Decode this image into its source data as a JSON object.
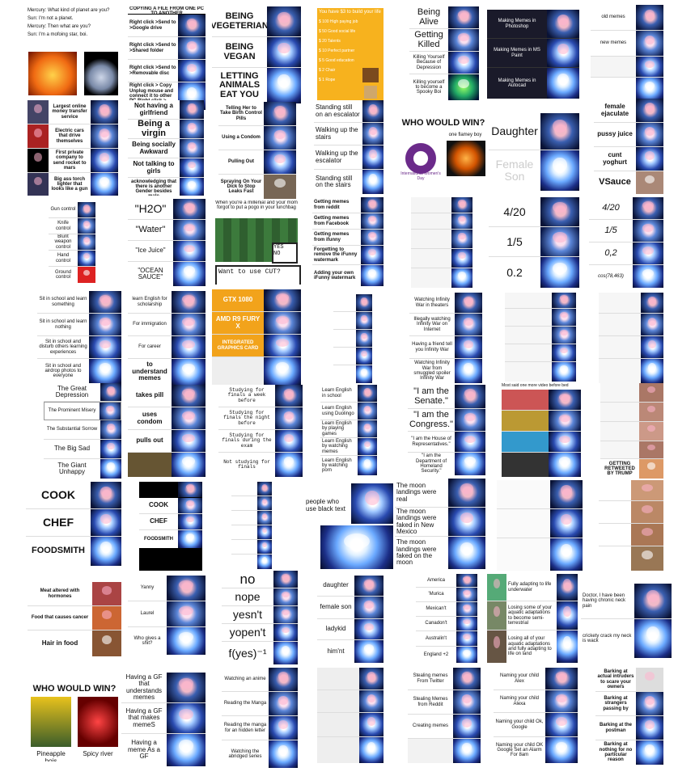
{
  "col1_chat": {
    "lines": [
      "Mercury: What kind of planet are you?",
      "Sun: I'm not a planet.",
      "Mercury: Then what are you?",
      "Sun: I'm a mofoing star, boi."
    ]
  },
  "col1_money": {
    "items": [
      "Largest online money transfer service",
      "Electric cars that drive themselves",
      "First private company to send rocket to mars",
      "Big ass torch lighter that looks like a gun"
    ]
  },
  "col1_control": {
    "items": [
      "Gun control",
      "Knife control",
      "Blunt weapon control",
      "Hand control",
      "Ground control"
    ]
  },
  "col1_school": {
    "items": [
      "Sit in school and learn something",
      "Sit in school and learn nothing",
      "Sit in school and disturb others learning experiences",
      "Sit in school and airdrop photos to everyone"
    ]
  },
  "col1_depression": {
    "items": [
      "The Great Depression",
      "The Prominent Misery",
      "The Substantial Sorrow",
      "The Big Sad",
      "The Giant Unhappy"
    ]
  },
  "col1_cook": {
    "items": [
      "COOK",
      "CHEF",
      "FOODSMITH"
    ]
  },
  "col1_meat": {
    "items": [
      "Meat altered with hormones",
      "Food that causes cancer",
      "Hair in food"
    ]
  },
  "col1_wcw": {
    "title": "WHO WOULD WIN?",
    "left": "Pineapple bois",
    "right": "Spicy river"
  },
  "col2_copy": {
    "title": "COPYING A FILE FROM ONE PC TO ANOTHER",
    "items": [
      "Right click >Send to >Google drive",
      "Right click >Send to >Shared folder",
      "Right click >Send to >Removable disc",
      "Right click > Copy Unplug mouse and connect it to other PC Right click > Paste"
    ]
  },
  "col2_gf": {
    "items": [
      "Not having a girlfriend",
      "Being a virgin",
      "Being socially Awkward",
      "Not talking to girls",
      "Not even acknowledging that there is another Gender besides male"
    ]
  },
  "col2_h2o": {
    "items": [
      "\"H2O\"",
      "\"Water\"",
      "\"Ice Juice\"",
      "\"OCEAN SAUCE\""
    ]
  },
  "col2_english": {
    "items": [
      "learn English for scholarship",
      "For immigration",
      "For career",
      "to understand memes"
    ]
  },
  "col2_pill": {
    "items": [
      "takes pill",
      "uses condom",
      "pulls out"
    ]
  },
  "col2_cook": {
    "items": [
      "COOK",
      "CHEF",
      "FOODSMITH"
    ]
  },
  "col2_yanny": {
    "items": [
      "Yanny",
      "Laurel",
      "Who gives a shit?"
    ]
  },
  "col2_gfmemes": {
    "items": [
      "Having a GF that understands memes",
      "Having a GF that makes memeS",
      "Having a meme As a GF"
    ]
  },
  "col3_vegan": {
    "items": [
      "BEING VEGETERIAN",
      "BEING VEGAN",
      "LETTING ANIMALS EAT YOU"
    ]
  },
  "col3_condom": {
    "items": [
      "Telling Her to Take Birth Control Pills",
      "Using a Condom",
      "Pulling Out",
      "Spraying On Your Dick to Stop Leaks Fast"
    ]
  },
  "col3_pokemon": {
    "caption": "When you're a millenial and your mom forgot to put a pogo in your lunchbag",
    "yes": "YES",
    "no": "NO",
    "dialog": "Want to use CUT?"
  },
  "col3_gpu": {
    "items": [
      "GTX 1080",
      "AMD R9 FURY X",
      "INTEGRATED GRAPHICS CARD"
    ]
  },
  "col3_study": {
    "items": [
      "Studying for finals a week before",
      "Studying for finals the night before",
      "Studying for finals during the exam",
      "Not studying for finals"
    ]
  },
  "col3_nope": {
    "items": [
      "no",
      "nope",
      "yesn't",
      "yopen't",
      "f(yes)⁻¹"
    ]
  },
  "col3_watch": {
    "items": [
      "Watching an anime",
      "Reading the Manga",
      "Reading the manga for an hidden letter",
      "Watching the abridged series"
    ]
  },
  "col4_build": {
    "title": "You have $3 to build your life",
    "items": [
      "$ 100 High paying job",
      "$ 50 Good social life",
      "$ 20 Talents",
      "$ 10 Perfect partner",
      "$ 5 Good education",
      "$ 2 Chair",
      "$ 1 Rope"
    ]
  },
  "col4_escalator": {
    "items": [
      "Standing still on an escalator",
      "Walking up the stairs",
      "Walking up the escalator",
      "Standing still on the stairs"
    ]
  },
  "col4_memes": {
    "items": [
      "Getting memes from reddit",
      "Getting memes from Facebook",
      "Getting memes from ifunny",
      "Forgetting to remove the iFunny watermark",
      "Adding your own iFunny watermark"
    ]
  },
  "col4_learn": {
    "items": [
      "Learn English in school",
      "Learn English using Duolingo",
      "Learn English by playing games",
      "Learn English by watching memes",
      "Learn English by watching porn"
    ]
  },
  "col4_black": {
    "items": [
      "people who use black text"
    ]
  },
  "col4_daughter": {
    "items": [
      "daughter",
      "female son",
      "ladykid",
      "him'nt"
    ]
  },
  "col5_alive": {
    "items": [
      "Being Alive",
      "Getting Killed",
      "Killing Yourself Because of Depression",
      "Killing yourself to become a Spooky Boi"
    ]
  },
  "col5_wcw": {
    "title": "WHO WOULD WIN?",
    "left": "International Women's Day",
    "right": "one flamey boy"
  },
  "col5_infinity": {
    "items": [
      "Watching Infinity War in theaters",
      "Illegally watching Infinity War on Internet",
      "Having a friend tell you Infinity War",
      "Watching Infinity War from smuggled spoiler Infinity War"
    ]
  },
  "col5_senate": {
    "items": [
      "\"I am the Senate.\"",
      "\"I am the Congress.\"",
      "\"I am the House of Representatives.\"",
      "\"I am the Department of Homeland Security.\""
    ]
  },
  "col5_moon": {
    "items": [
      "The moon landings were real",
      "The moon landings were faked in New Mexico",
      "The moon landings were faked on the moon"
    ]
  },
  "col5_america": {
    "items": [
      "America",
      "'Murica",
      "Mexican't",
      "Canadon't",
      "Australin't",
      "England +2"
    ]
  },
  "col5_stealing": {
    "items": [
      "Stealing memes From Twitter",
      "Stealing Memes from Reddit",
      "Creating memes"
    ]
  },
  "col6_making": {
    "items": [
      "Making Memes in Photoshop",
      "Making Memes in MS Paint",
      "Making Memes in Autocad"
    ]
  },
  "col6_daughter": {
    "items": [
      "Daughter",
      "Female Son"
    ]
  },
  "col6_numbers": {
    "items": [
      "4/20",
      "1/5",
      "0.2"
    ]
  },
  "col6_youtube": {
    "title": "Most said one more video before bed"
  },
  "col6_adapt": {
    "items": [
      "Fully adapting to life underwater",
      "Losing some of your aquatic adaptations to become semi-terrestrial",
      "Losing all of your aquatic adaptations and fully adapting to life on land"
    ]
  },
  "col6_naming": {
    "items": [
      "Naming your child Alex",
      "Naming your child Alexa",
      "Naming your child Ok, Google",
      "Naming your child OK Google Set an Alarm For 8am"
    ]
  },
  "col7_ejac": {
    "items": [
      "old memes",
      "new memes",
      "female ejaculate",
      "pussy juice",
      "cunt yoghurt",
      "VSauce"
    ]
  },
  "col7_num": {
    "items": [
      "4/20",
      "1/5",
      "0,2",
      "cos(78,463)"
    ]
  },
  "col7_trump": {
    "items": [
      "GETTING RETWEETED BY TRUMP"
    ]
  },
  "col7_doctor": {
    "items": [
      "Doctor, I have been having chronic neck pain",
      "crickety crack my neck is wack"
    ]
  },
  "col7_bark": {
    "items": [
      "Barking at actual intruders to scare your owners",
      "Barking at strangers passing by",
      "Barking at the postman",
      "Barking at nothing for no particular reason"
    ]
  }
}
